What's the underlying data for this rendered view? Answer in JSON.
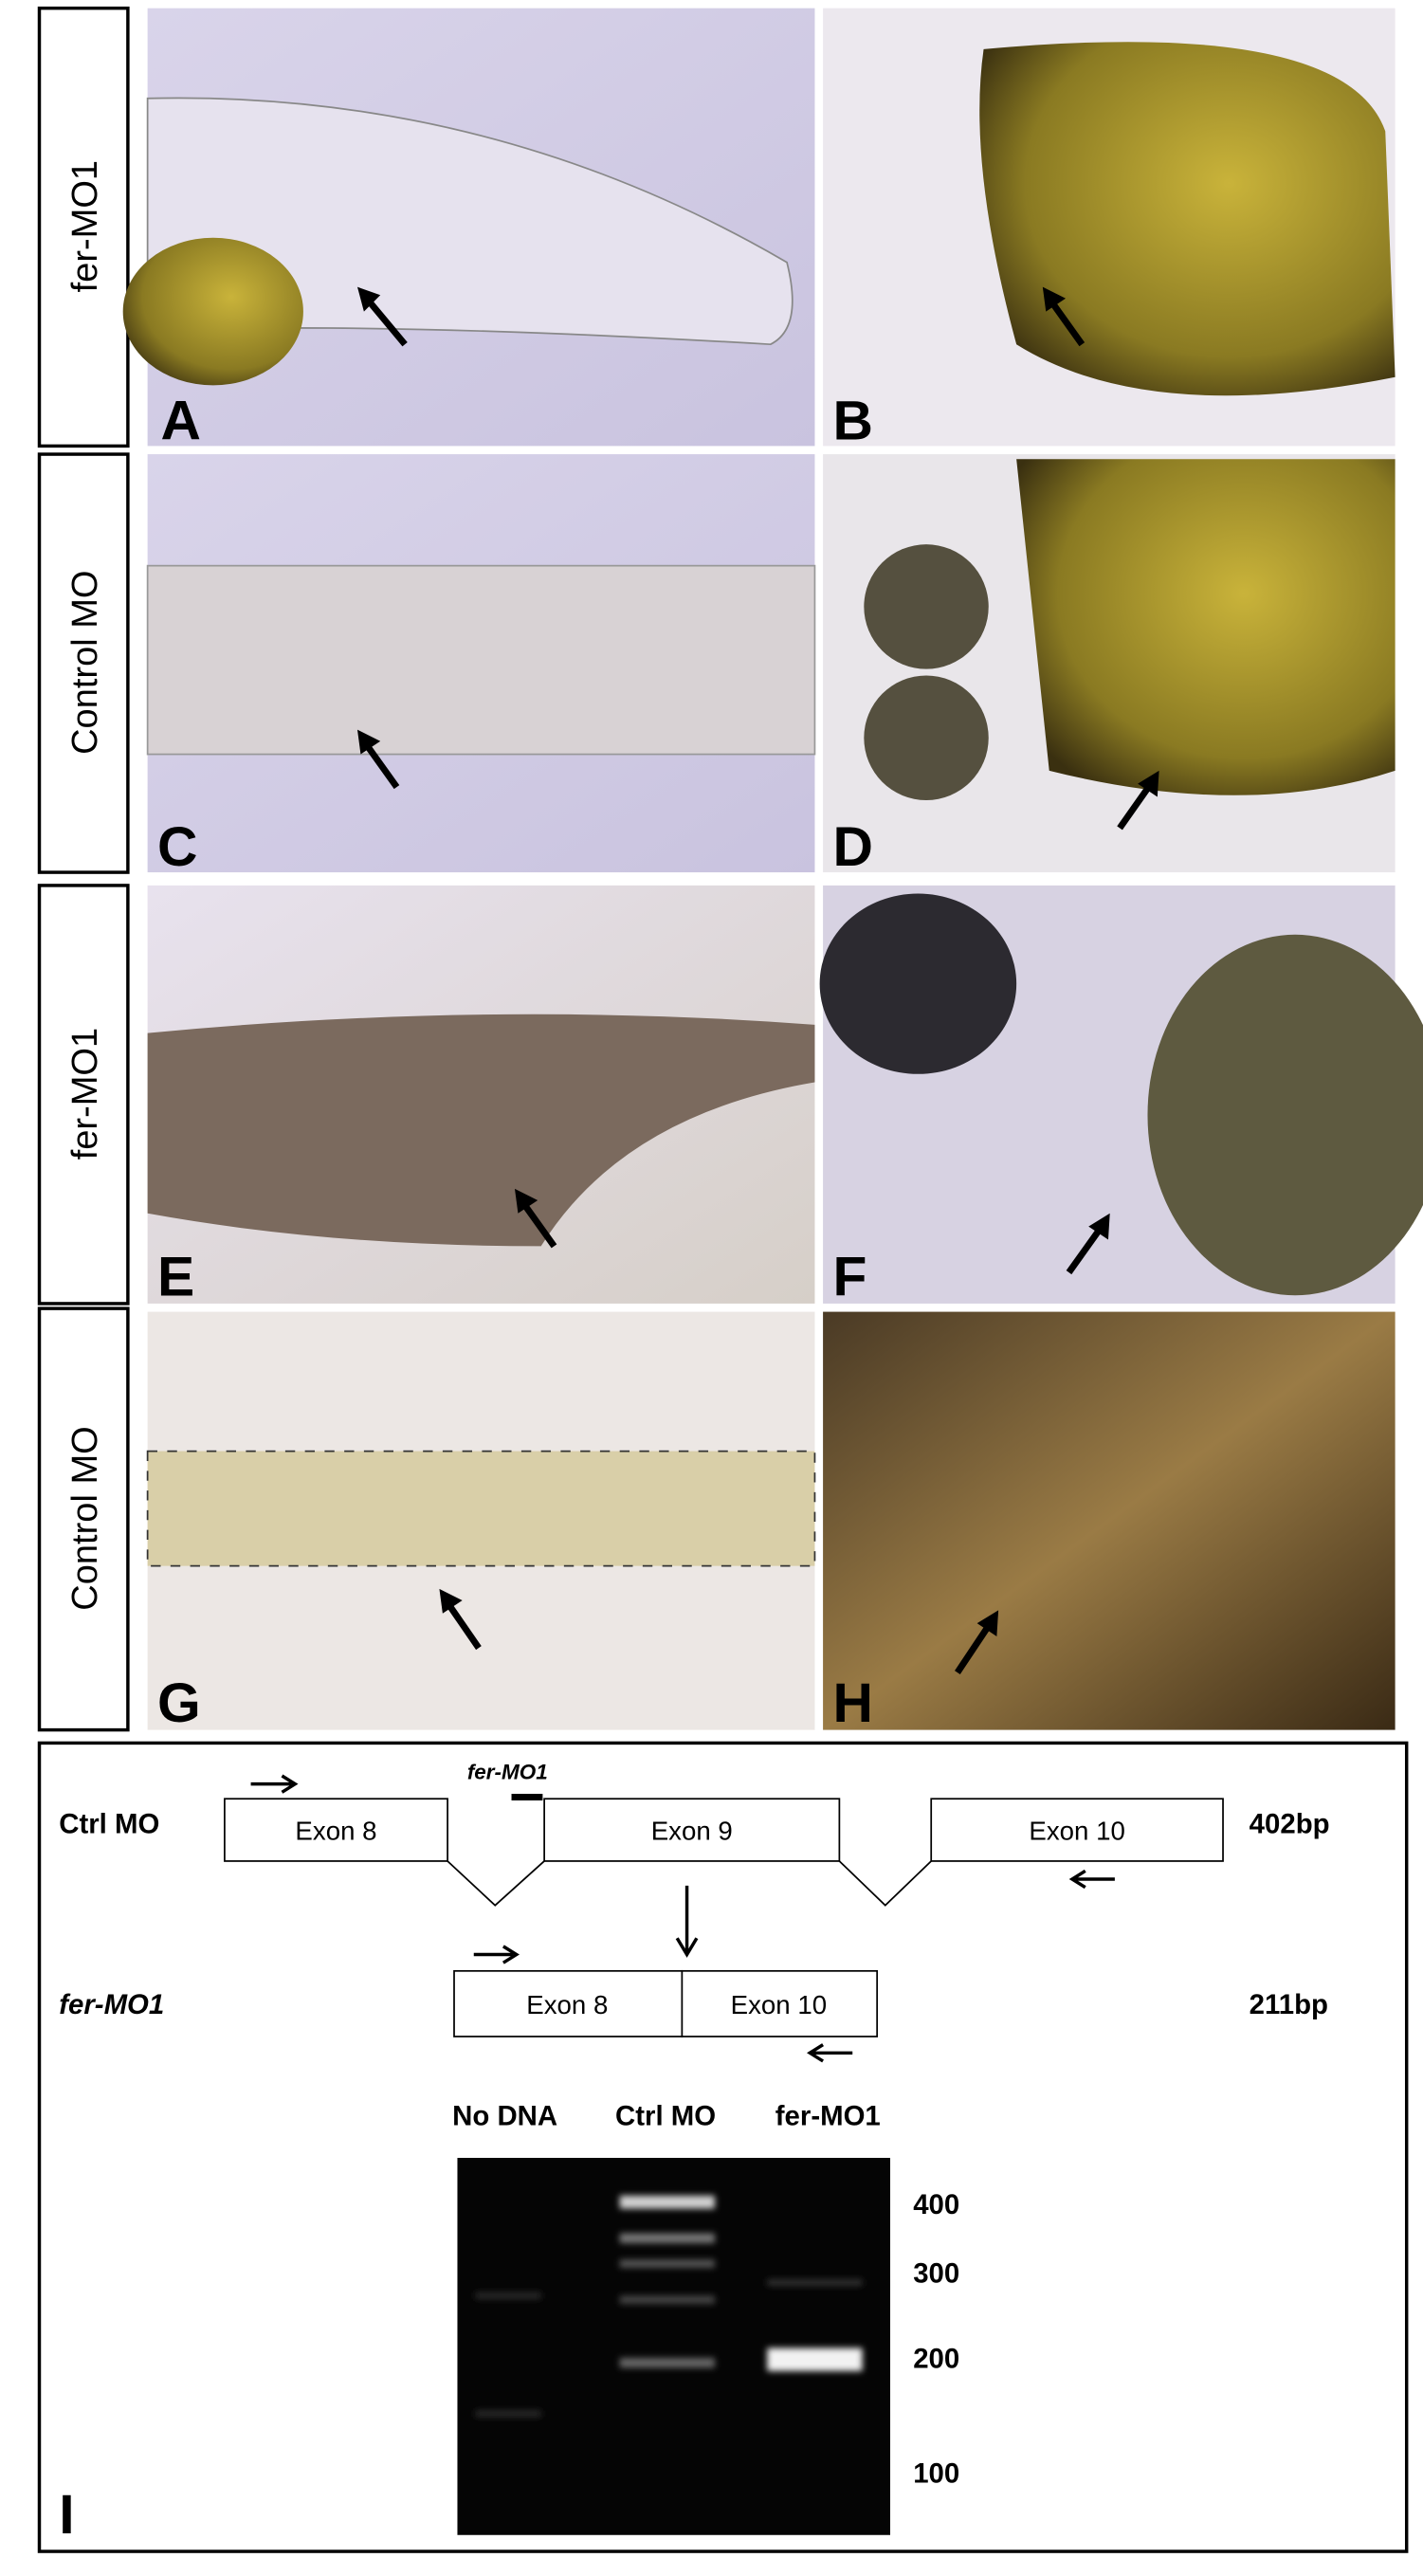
{
  "row_labels": [
    "fer-MO1",
    "Control MO",
    "fer-MO1",
    "Control MO"
  ],
  "panel_letters": [
    "A",
    "B",
    "C",
    "D",
    "E",
    "F",
    "G",
    "H",
    "I"
  ],
  "diagram": {
    "ctrl_row": {
      "label": "Ctrl MO",
      "morpholino": "fer-MO1",
      "exons": [
        "Exon 8",
        "Exon 9",
        "Exon 10"
      ],
      "size": "402bp"
    },
    "mo_row": {
      "label": "fer-MO1",
      "exons": [
        "Exon 8",
        "Exon 10"
      ],
      "size": "211bp"
    }
  },
  "gel": {
    "lanes": [
      "No DNA",
      "Ctrl MO",
      "fer-MO1"
    ],
    "markers": [
      "400",
      "300",
      "200",
      "100"
    ]
  }
}
